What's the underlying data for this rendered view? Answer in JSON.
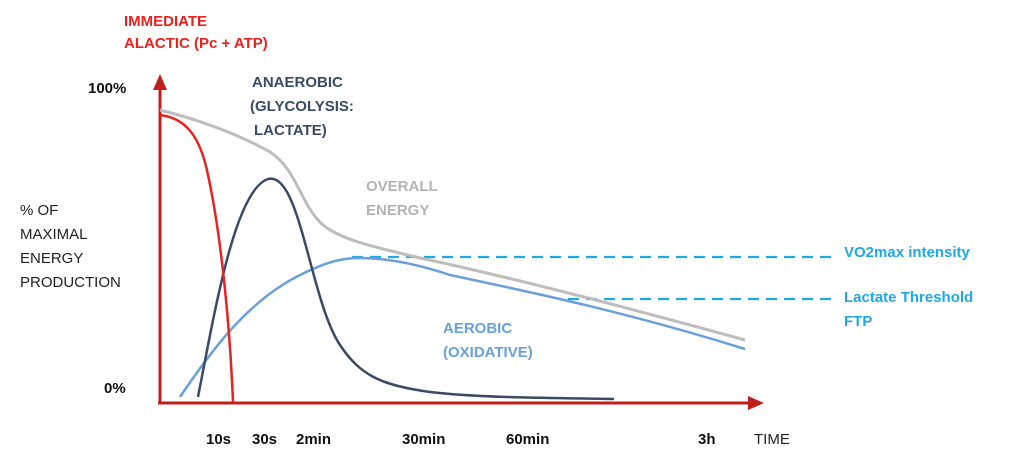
{
  "labels": {
    "immediate_line1": "IMMEDIATE",
    "immediate_line2": "ALACTIC (Pc + ATP)",
    "anaerobic_line1": "ANAEROBIC",
    "anaerobic_line2": "(GLYCOLYSIS:",
    "anaerobic_line3": "LACTATE)",
    "overall_line1": "OVERALL",
    "overall_line2": "ENERGY",
    "aerobic_line1": "AEROBIC",
    "aerobic_line2": "(OXIDATIVE)",
    "vo2max": "VO2max intensity",
    "lactate_threshold": "Lactate Threshold",
    "ftp": "FTP"
  },
  "y_axis": {
    "top": "100%",
    "bottom": "0%",
    "title_line1": "% OF",
    "title_line2": "MAXIMAL",
    "title_line3": "ENERGY",
    "title_line4": "PRODUCTION"
  },
  "x_axis": {
    "ticks": [
      "10s",
      "30s",
      "2min",
      "30min",
      "60min",
      "3h"
    ],
    "title": "TIME"
  },
  "colors": {
    "alactic": "#e8231f",
    "anaerobic": "#3a4a66",
    "overall": "#bdbdbd",
    "aerobic": "#6aa0d8",
    "reference_lines": "#1fa8e6",
    "axes": "#c0201c"
  }
}
